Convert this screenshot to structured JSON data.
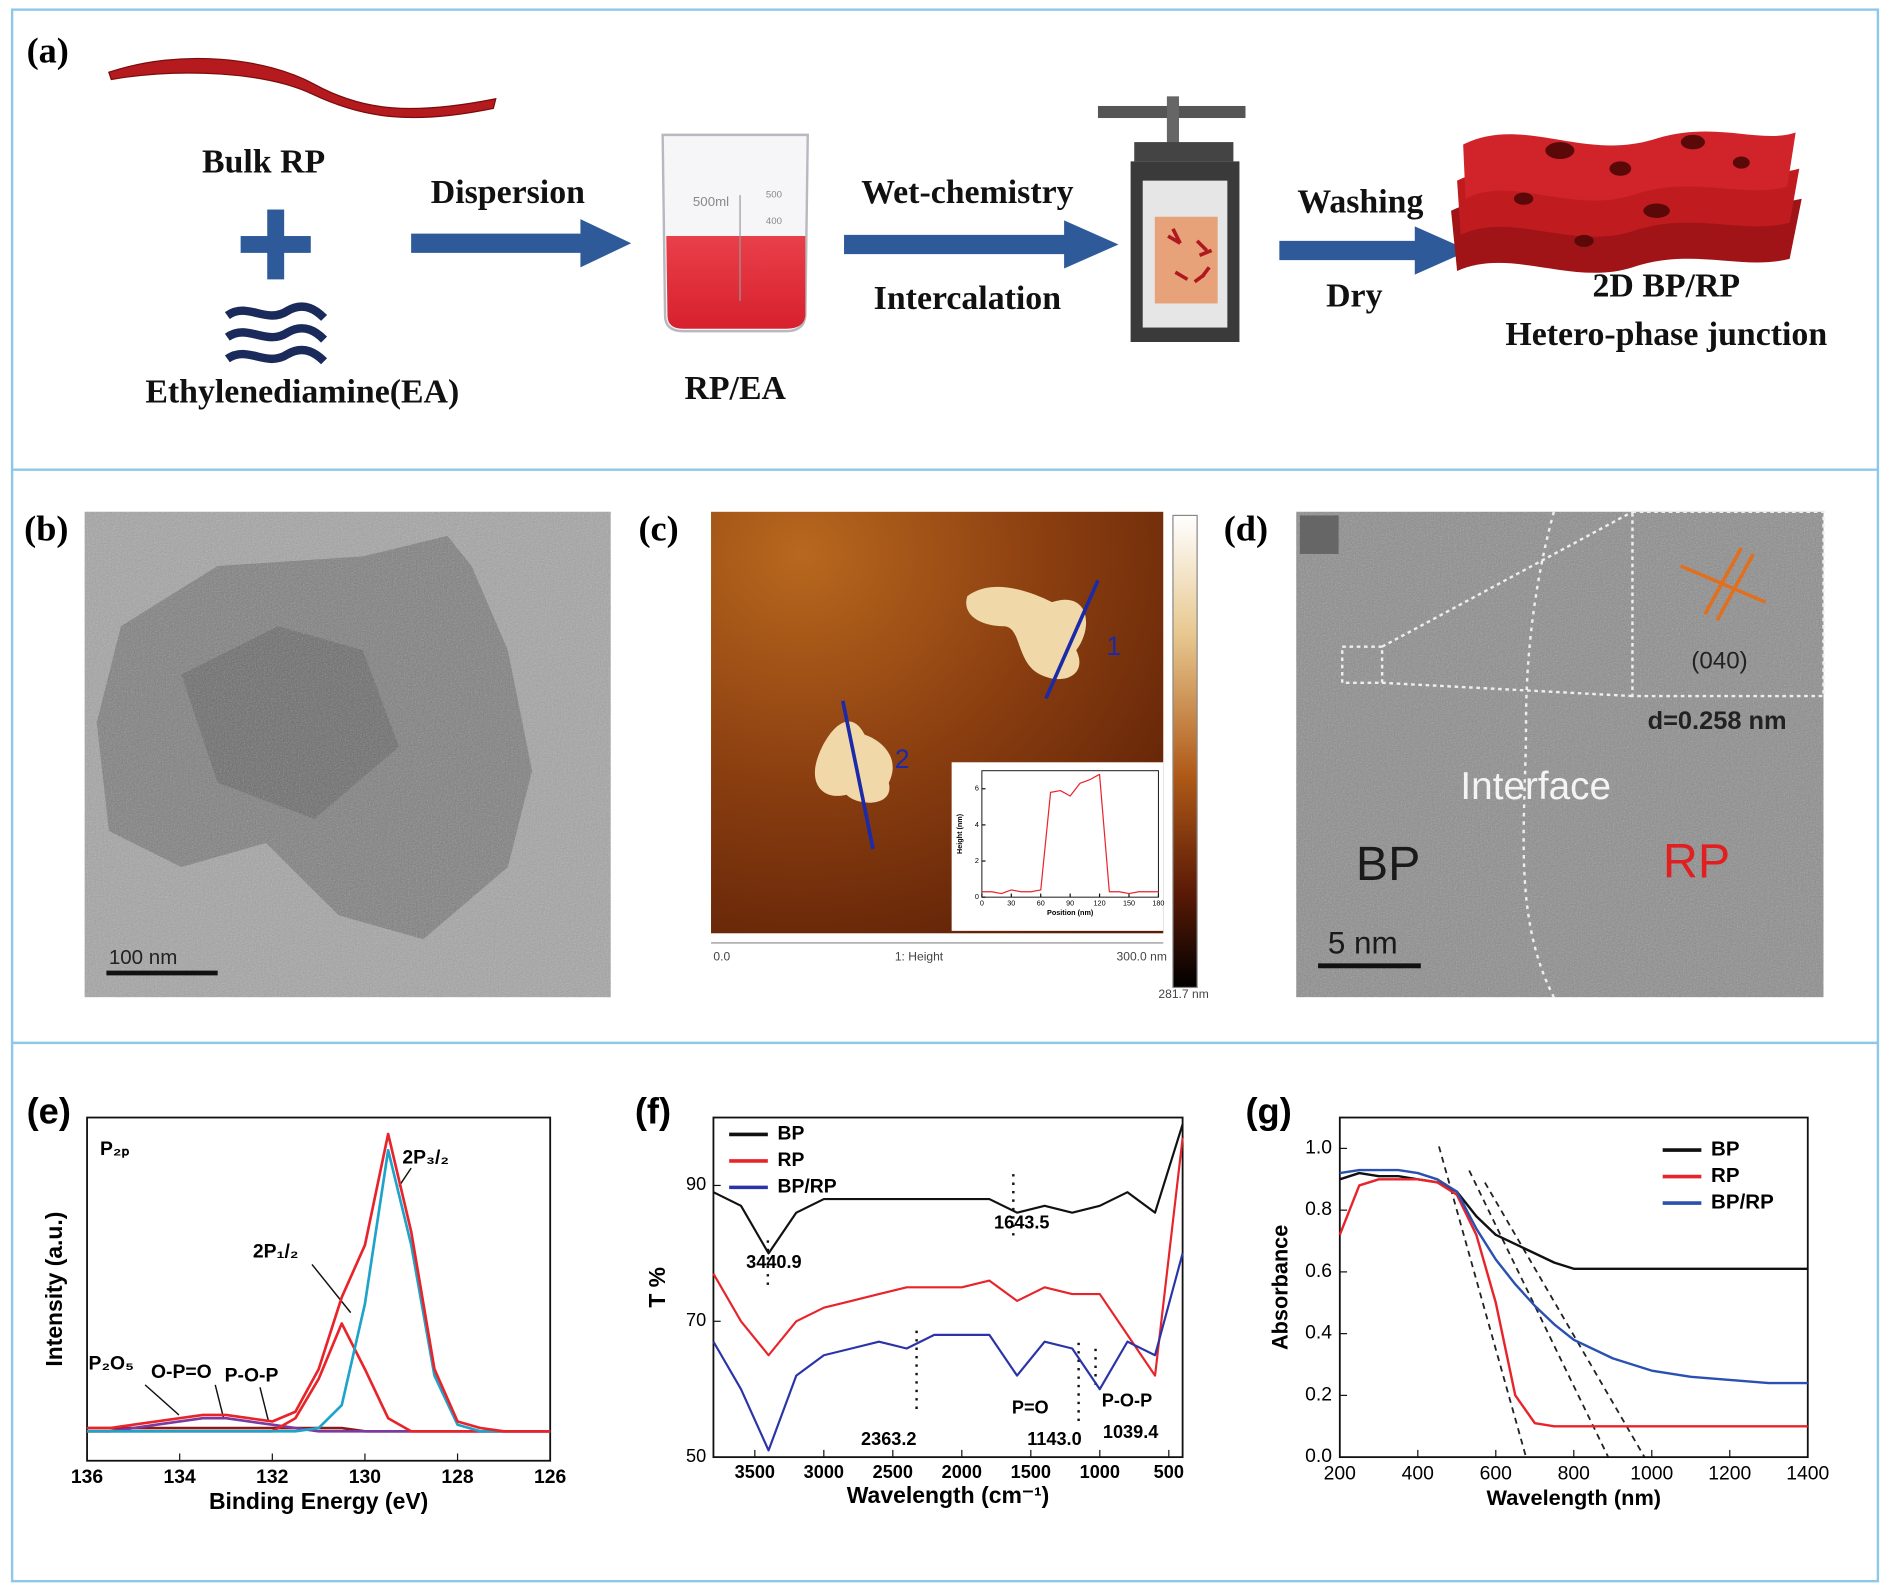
{
  "panel_a": {
    "label": "(a)",
    "bulk": "Bulk RP",
    "ea": "Ethylenediamine(EA)",
    "dispersion": "Dispersion",
    "beaker_volume": "500ml",
    "beaker_marks": [
      "500",
      "400"
    ],
    "mixture": "RP/EA",
    "step_wet": "Wet-chemistry",
    "step_intercalation": "Intercalation",
    "step_washing": "Washing",
    "step_dry": "Dry",
    "product_line1": "2D BP/RP",
    "product_line2": "Hetero-phase junction"
  },
  "panel_b": {
    "label": "(b)",
    "scale_bar": "100 nm"
  },
  "panel_c": {
    "label": "(c)",
    "line_1": "1",
    "line_2": "2",
    "axis_start": "0.0",
    "axis_channel": "1: Height",
    "axis_end": "300.0 nm",
    "colorbar_max": "281.7 nm"
  },
  "panel_d": {
    "label": "(d)",
    "plane": "(040)",
    "spacing": "d=0.258 nm",
    "interface": "Interface",
    "left_phase": "BP",
    "right_phase": "RP",
    "scale_bar": "5 nm"
  },
  "chart_data": [
    {
      "type": "line",
      "x": [
        0,
        10,
        20,
        30,
        40,
        50,
        60,
        70,
        80,
        90,
        100,
        110,
        120,
        130,
        140,
        150,
        160,
        170,
        180
      ],
      "series": [
        {
          "color": "#e8242b",
          "values": [
            0.3,
            0.3,
            0.2,
            0.4,
            0.3,
            0.3,
            0.4,
            5.8,
            5.9,
            5.6,
            6.3,
            6.5,
            6.8,
            0.3,
            0.3,
            0.2,
            0.3,
            0.3,
            0.3
          ]
        }
      ],
      "xlim": [
        0,
        180
      ],
      "ylim": [
        0,
        7
      ],
      "xticks": [
        0,
        30,
        60,
        90,
        120,
        150,
        180
      ],
      "yticks": [
        0,
        2,
        4,
        6
      ],
      "xlabel": "Position (nm)",
      "ylabel": "Height (nm)"
    },
    {
      "type": "line",
      "panel": "(e)",
      "x": [
        136,
        135.5,
        135,
        134.5,
        134,
        133.5,
        133,
        132.5,
        132,
        131.5,
        131,
        130.5,
        130,
        129.5,
        129,
        128.5,
        128,
        127.5,
        127,
        126.5,
        126
      ],
      "series": [
        {
          "color": "#8b1a1a",
          "values": [
            0.1,
            0.1,
            0.1,
            0.1,
            0.1,
            0.1,
            0.1,
            0.1,
            0.1,
            0.1,
            0.1,
            0.1,
            0.09,
            0.09,
            0.09,
            0.09,
            0.09,
            0.09,
            0.09,
            0.09,
            0.09
          ]
        },
        {
          "color": "#7a3aa0",
          "values": [
            0.09,
            0.09,
            0.1,
            0.11,
            0.12,
            0.13,
            0.13,
            0.12,
            0.11,
            0.1,
            0.09,
            0.09,
            0.09,
            0.09,
            0.09,
            0.09,
            0.09,
            0.09,
            0.09,
            0.09,
            0.09
          ]
        },
        {
          "color": "#e8242b",
          "values": [
            0.09,
            0.09,
            0.09,
            0.09,
            0.09,
            0.09,
            0.09,
            0.09,
            0.09,
            0.13,
            0.25,
            0.42,
            0.28,
            0.13,
            0.09,
            0.09,
            0.09,
            0.09,
            0.09,
            0.09,
            0.09
          ]
        },
        {
          "color": "#1ea3c9",
          "values": [
            0.09,
            0.09,
            0.09,
            0.09,
            0.09,
            0.09,
            0.09,
            0.09,
            0.09,
            0.09,
            0.1,
            0.17,
            0.48,
            0.95,
            0.66,
            0.26,
            0.11,
            0.09,
            0.09,
            0.09,
            0.09
          ]
        },
        {
          "color": "#e8242b",
          "values": [
            0.1,
            0.1,
            0.11,
            0.12,
            0.13,
            0.14,
            0.14,
            0.13,
            0.12,
            0.15,
            0.28,
            0.5,
            0.66,
            1.0,
            0.7,
            0.28,
            0.12,
            0.1,
            0.09,
            0.09,
            0.09
          ]
        }
      ],
      "xlim": [
        136,
        126
      ],
      "ylim": [
        0,
        1.05
      ],
      "xticks": [
        136,
        134,
        132,
        130,
        128,
        126
      ],
      "xlabel": "Binding Energy (eV)",
      "ylabel": "Intensity (a.u.)",
      "annotations": [
        "P₂ₚ",
        "2P₃/₂",
        "2P₁/₂",
        "P₂O₅",
        "O-P=O",
        "P-O-P"
      ]
    },
    {
      "type": "line",
      "panel": "(f)",
      "x": [
        3800,
        3600,
        3400,
        3200,
        3000,
        2800,
        2600,
        2400,
        2200,
        2000,
        1800,
        1600,
        1400,
        1200,
        1000,
        800,
        600,
        400
      ],
      "series": [
        {
          "name": "BP",
          "color": "#111111",
          "values": [
            89,
            87,
            80,
            86,
            88,
            88,
            88,
            88,
            88,
            88,
            88,
            86,
            87,
            86,
            87,
            89,
            86,
            99
          ]
        },
        {
          "name": "RP",
          "color": "#e8242b",
          "values": [
            77,
            70,
            65,
            70,
            72,
            73,
            74,
            75,
            75,
            75,
            76,
            73,
            75,
            74,
            74,
            68,
            62,
            97
          ]
        },
        {
          "name": "BP/RP",
          "color": "#2a34a8",
          "values": [
            67,
            60,
            51,
            62,
            65,
            66,
            67,
            66,
            68,
            68,
            68,
            62,
            67,
            66,
            60,
            67,
            65,
            80
          ]
        }
      ],
      "xlim": [
        3800,
        400
      ],
      "ylim": [
        50,
        100
      ],
      "xticks": [
        3500,
        3000,
        2500,
        2000,
        1500,
        1000,
        500
      ],
      "yticks": [
        50,
        70,
        90
      ],
      "xlabel": "Wavelength (cm⁻¹)",
      "ylabel": "T %",
      "legend": "upper left",
      "annotations": [
        "3440.9",
        "1643.5",
        "2363.2",
        "P=O",
        "1143.0",
        "P-O-P",
        "1039.4"
      ]
    },
    {
      "type": "line",
      "panel": "(g)",
      "x": [
        200,
        250,
        300,
        350,
        400,
        450,
        500,
        550,
        600,
        650,
        700,
        750,
        800,
        900,
        1000,
        1100,
        1200,
        1300,
        1400
      ],
      "series": [
        {
          "name": "BP",
          "color": "#111111",
          "values": [
            0.9,
            0.92,
            0.91,
            0.91,
            0.9,
            0.89,
            0.86,
            0.78,
            0.72,
            0.69,
            0.66,
            0.63,
            0.61,
            0.61,
            0.61,
            0.61,
            0.61,
            0.61,
            0.61
          ]
        },
        {
          "name": "RP",
          "color": "#e8242b",
          "values": [
            0.72,
            0.88,
            0.9,
            0.9,
            0.9,
            0.89,
            0.85,
            0.72,
            0.5,
            0.2,
            0.11,
            0.1,
            0.1,
            0.1,
            0.1,
            0.1,
            0.1,
            0.1,
            0.1
          ]
        },
        {
          "name": "BP/RP",
          "color": "#2a50b0",
          "values": [
            0.92,
            0.93,
            0.93,
            0.93,
            0.92,
            0.9,
            0.86,
            0.74,
            0.64,
            0.56,
            0.49,
            0.43,
            0.38,
            0.32,
            0.28,
            0.26,
            0.25,
            0.24,
            0.24
          ]
        }
      ],
      "xlim": [
        200,
        1400
      ],
      "ylim": [
        0,
        1.1
      ],
      "xticks": [
        200,
        400,
        600,
        800,
        1000,
        1200,
        1400
      ],
      "yticks": [
        {
          "value": 0,
          "label": "0.0"
        },
        0.2,
        0.4,
        0.6,
        0.8,
        {
          "value": 1,
          "label": "1.0"
        }
      ],
      "xlabel": "Wavelength (nm)",
      "ylabel": "Absorbance",
      "legend": "upper right"
    }
  ]
}
